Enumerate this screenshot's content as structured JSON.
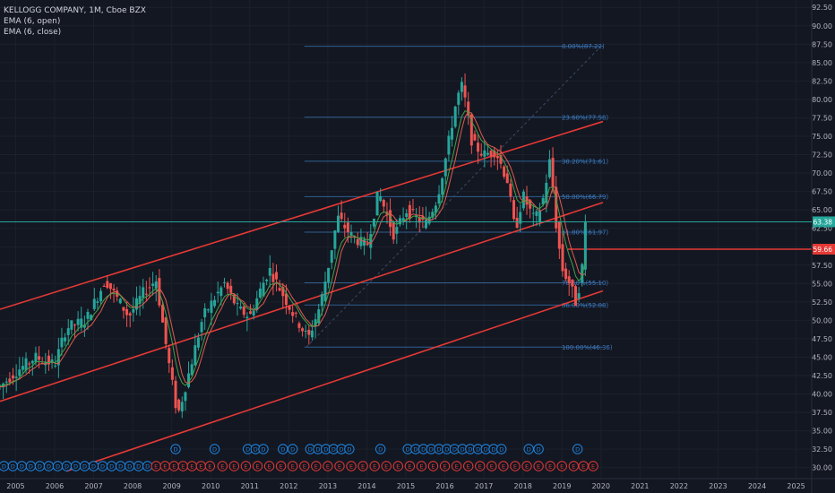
{
  "legend": {
    "symbol": "KELLOGG COMPANY, 1M, Cboe BZX",
    "ema_open": "EMA (6, open)",
    "ema_close": "EMA (6, close)"
  },
  "price_tags": {
    "current": "63.38",
    "level": "59.66"
  },
  "colors": {
    "background": "#131722",
    "up": "#26a69a",
    "down": "#ef5350",
    "channel": "#e53935",
    "fib": "#2f5f8f",
    "ema_open": "#e05a4f",
    "ema_close": "#43a047",
    "current_price": "#26a69a",
    "dividend": "#1e88e5",
    "earnings": "#e53935"
  },
  "chart_data": {
    "type": "candlestick",
    "x_axis": {
      "unit": "year",
      "range": [
        2004.6,
        2025.4
      ],
      "ticks": [
        "2005",
        "2006",
        "2007",
        "2008",
        "2009",
        "2010",
        "2011",
        "2012",
        "2013",
        "2014",
        "2015",
        "2016",
        "2017",
        "2018",
        "2019",
        "2020",
        "2021",
        "2022",
        "2023",
        "2024",
        "2025"
      ]
    },
    "y_axis": {
      "range": [
        28.5,
        93.5
      ],
      "ticks": [
        "30.00",
        "32.50",
        "35.00",
        "37.50",
        "40.00",
        "42.50",
        "45.00",
        "47.50",
        "50.00",
        "52.50",
        "55.00",
        "57.50",
        "60.00",
        "62.50",
        "65.00",
        "67.50",
        "70.00",
        "72.50",
        "75.00",
        "77.50",
        "80.00",
        "82.50",
        "85.00",
        "87.50",
        "90.00",
        "92.50"
      ]
    },
    "anchors": [
      [
        2004.6,
        41.0
      ],
      [
        2005.0,
        43.0
      ],
      [
        2005.5,
        45.0
      ],
      [
        2006.0,
        44.0
      ],
      [
        2006.3,
        49.0
      ],
      [
        2006.8,
        50.0
      ],
      [
        2007.3,
        55.5
      ],
      [
        2007.6,
        53.0
      ],
      [
        2007.9,
        50.5
      ],
      [
        2008.3,
        54.0
      ],
      [
        2008.6,
        55.5
      ],
      [
        2008.9,
        45.0
      ],
      [
        2009.15,
        37.0
      ],
      [
        2009.4,
        42.0
      ],
      [
        2009.8,
        50.5
      ],
      [
        2010.1,
        53.0
      ],
      [
        2010.35,
        55.0
      ],
      [
        2010.7,
        51.5
      ],
      [
        2011.0,
        50.5
      ],
      [
        2011.3,
        54.5
      ],
      [
        2011.5,
        57.0
      ],
      [
        2011.8,
        54.0
      ],
      [
        2012.1,
        51.0
      ],
      [
        2012.5,
        47.5
      ],
      [
        2012.8,
        52.0
      ],
      [
        2013.0,
        57.0
      ],
      [
        2013.25,
        64.0
      ],
      [
        2013.6,
        61.5
      ],
      [
        2014.0,
        60.0
      ],
      [
        2014.3,
        67.5
      ],
      [
        2014.7,
        61.5
      ],
      [
        2015.0,
        65.0
      ],
      [
        2015.5,
        63.0
      ],
      [
        2015.8,
        66.5
      ],
      [
        2016.0,
        71.5
      ],
      [
        2016.3,
        80.0
      ],
      [
        2016.45,
        82.0
      ],
      [
        2016.7,
        74.0
      ],
      [
        2017.0,
        72.5
      ],
      [
        2017.3,
        73.0
      ],
      [
        2017.6,
        69.0
      ],
      [
        2017.8,
        62.0
      ],
      [
        2018.0,
        67.0
      ],
      [
        2018.3,
        63.5
      ],
      [
        2018.5,
        66.0
      ],
      [
        2018.7,
        72.0
      ],
      [
        2018.85,
        63.0
      ],
      [
        2019.0,
        57.0
      ],
      [
        2019.2,
        55.0
      ],
      [
        2019.35,
        52.5
      ],
      [
        2019.5,
        56.0
      ],
      [
        2019.6,
        63.38
      ]
    ],
    "ema_open_label": "EMA (6, open)",
    "ema_close_label": "EMA (6, close)",
    "channel_lines": [
      {
        "from": [
          2004.6,
          51.5
        ],
        "to": [
          2020.05,
          77.0
        ]
      },
      {
        "from": [
          2004.6,
          39.0
        ],
        "to": [
          2020.05,
          66.0
        ]
      },
      {
        "from": [
          2006.3,
          29.5
        ],
        "to": [
          2020.05,
          54.0
        ]
      },
      {
        "from": [
          2019.15,
          59.66
        ],
        "to": [
          2025.4,
          59.66
        ]
      }
    ],
    "fib_swing": {
      "from": [
        2012.45,
        46.36
      ],
      "to": [
        2020.0,
        87.22
      ]
    },
    "fib_x_range": [
      2012.4,
      2020.05
    ],
    "fib_levels": [
      {
        "price": 87.22,
        "label": "0.00%(87.22)"
      },
      {
        "price": 77.58,
        "label": "23.60%(77.58)"
      },
      {
        "price": 71.61,
        "label": "38.20%(71.61)"
      },
      {
        "price": 66.79,
        "label": "50.00%(66.79)"
      },
      {
        "price": 61.97,
        "label": "61.80%(61.97)"
      },
      {
        "price": 55.1,
        "label": "78.60%(55.10)"
      },
      {
        "price": 52.08,
        "label": "86.00%(52.08)"
      },
      {
        "price": 46.36,
        "label": "100.00%(46.36)"
      }
    ],
    "events": {
      "dividend_row": [
        2004.7,
        2004.93,
        2005.16,
        2005.39,
        2005.62,
        2005.85,
        2006.08,
        2006.31,
        2006.54,
        2006.77,
        2007.0,
        2007.23,
        2007.46,
        2007.69,
        2007.92,
        2008.15,
        2008.38
      ],
      "earnings_row": [
        2008.6,
        2008.83,
        2009.06,
        2009.29,
        2009.52,
        2009.75,
        2009.98,
        2010.3,
        2010.6,
        2010.9,
        2011.2,
        2011.5,
        2011.8,
        2012.1,
        2012.4,
        2012.7,
        2013.0,
        2013.3,
        2013.6,
        2013.9,
        2014.2,
        2014.5,
        2014.8,
        2015.1,
        2015.4,
        2015.7,
        2016.0,
        2016.3,
        2016.6,
        2016.9,
        2017.2,
        2017.5,
        2017.8,
        2018.1,
        2018.4,
        2018.7,
        2019.0,
        2019.3,
        2019.55,
        2019.8
      ],
      "dividend_upper": [
        2009.1,
        2010.1,
        2010.95,
        2011.15,
        2011.35,
        2011.85,
        2012.1,
        2012.55,
        2012.75,
        2012.95,
        2013.15,
        2013.35,
        2013.55,
        2014.35,
        2015.05,
        2015.25,
        2015.45,
        2015.65,
        2015.85,
        2016.05,
        2016.25,
        2016.45,
        2016.65,
        2016.85,
        2017.05,
        2017.25,
        2017.45,
        2018.15,
        2018.4,
        2019.4
      ]
    },
    "event_letters": {
      "dividend": "D",
      "earnings": "E"
    }
  }
}
